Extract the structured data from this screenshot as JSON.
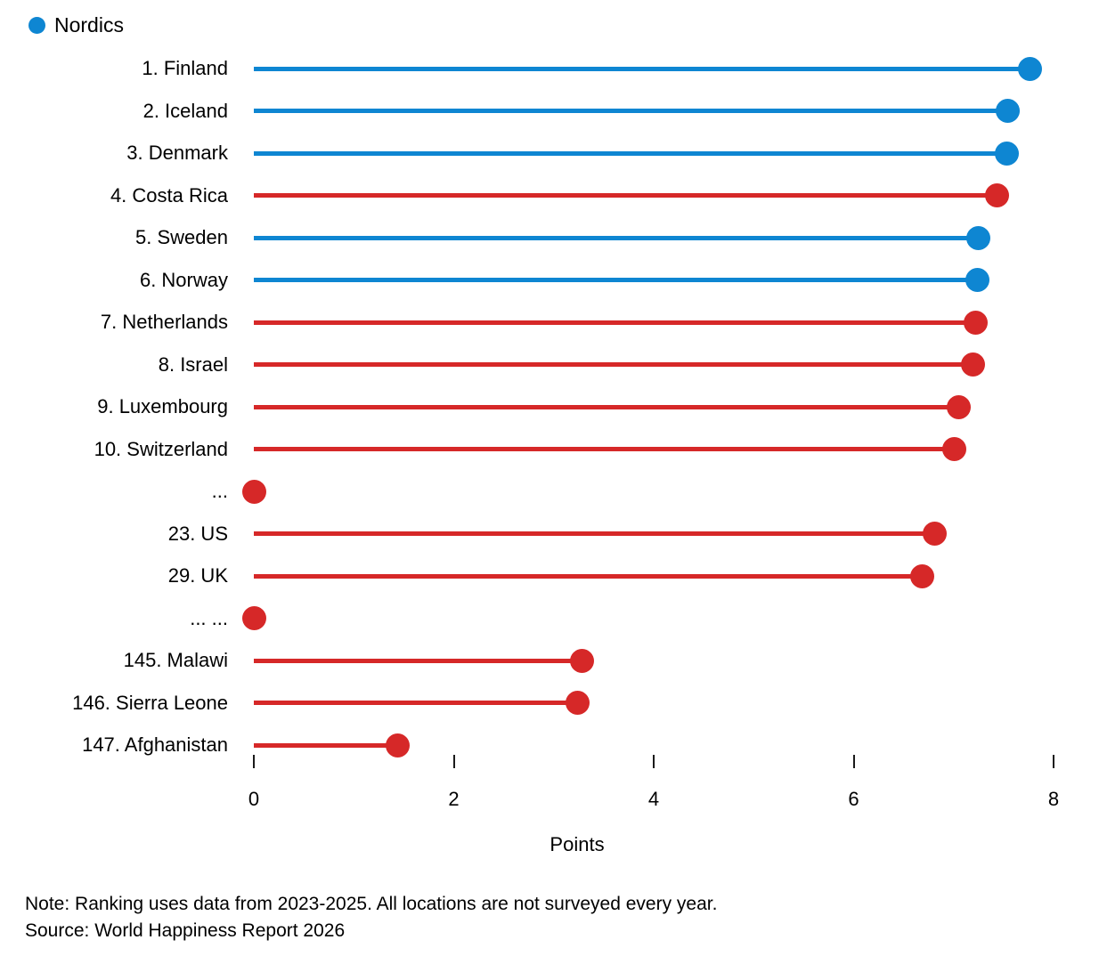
{
  "colors": {
    "nordics": "#0e86d2",
    "other": "#d62828",
    "text": "#000000",
    "tick": "#1a1a1a"
  },
  "footer": {
    "note": "Note: Ranking uses data from 2023-2025. All locations are not surveyed every year.",
    "source": "Source: World Happiness Report 2026"
  },
  "chart_data": {
    "type": "bar",
    "variant": "horizontal-lollipop",
    "title": "",
    "xlabel": "Points",
    "ylabel": "",
    "xlim": [
      0,
      8
    ],
    "xticks": [
      0,
      2,
      4,
      6,
      8
    ],
    "grid": false,
    "legend_position": "top-left",
    "legend": [
      {
        "label": "Nordics",
        "group": "nordics",
        "color": "#0e86d2"
      }
    ],
    "rows": [
      {
        "label": "1. Finland",
        "value": 7.76,
        "group": "nordics",
        "ellipsis": false
      },
      {
        "label": "2. Iceland",
        "value": 7.54,
        "group": "nordics",
        "ellipsis": false
      },
      {
        "label": "3. Denmark",
        "value": 7.53,
        "group": "nordics",
        "ellipsis": false
      },
      {
        "label": "4. Costa Rica",
        "value": 7.43,
        "group": "other",
        "ellipsis": false
      },
      {
        "label": "5. Sweden",
        "value": 7.25,
        "group": "nordics",
        "ellipsis": false
      },
      {
        "label": "6. Norway",
        "value": 7.24,
        "group": "nordics",
        "ellipsis": false
      },
      {
        "label": "7. Netherlands",
        "value": 7.22,
        "group": "other",
        "ellipsis": false
      },
      {
        "label": "8. Israel",
        "value": 7.19,
        "group": "other",
        "ellipsis": false
      },
      {
        "label": "9. Luxembourg",
        "value": 7.05,
        "group": "other",
        "ellipsis": false
      },
      {
        "label": "10. Switzerland",
        "value": 7.01,
        "group": "other",
        "ellipsis": false
      },
      {
        "label": "...",
        "value": 0,
        "group": "other",
        "ellipsis": true
      },
      {
        "label": "23. US",
        "value": 6.81,
        "group": "other",
        "ellipsis": false
      },
      {
        "label": "29. UK",
        "value": 6.69,
        "group": "other",
        "ellipsis": false
      },
      {
        "label": "... ...",
        "value": 0,
        "group": "other",
        "ellipsis": true
      },
      {
        "label": "145. Malawi",
        "value": 3.28,
        "group": "other",
        "ellipsis": false
      },
      {
        "label": "146. Sierra Leone",
        "value": 3.24,
        "group": "other",
        "ellipsis": false
      },
      {
        "label": "147. Afghanistan",
        "value": 1.44,
        "group": "other",
        "ellipsis": false
      }
    ]
  }
}
